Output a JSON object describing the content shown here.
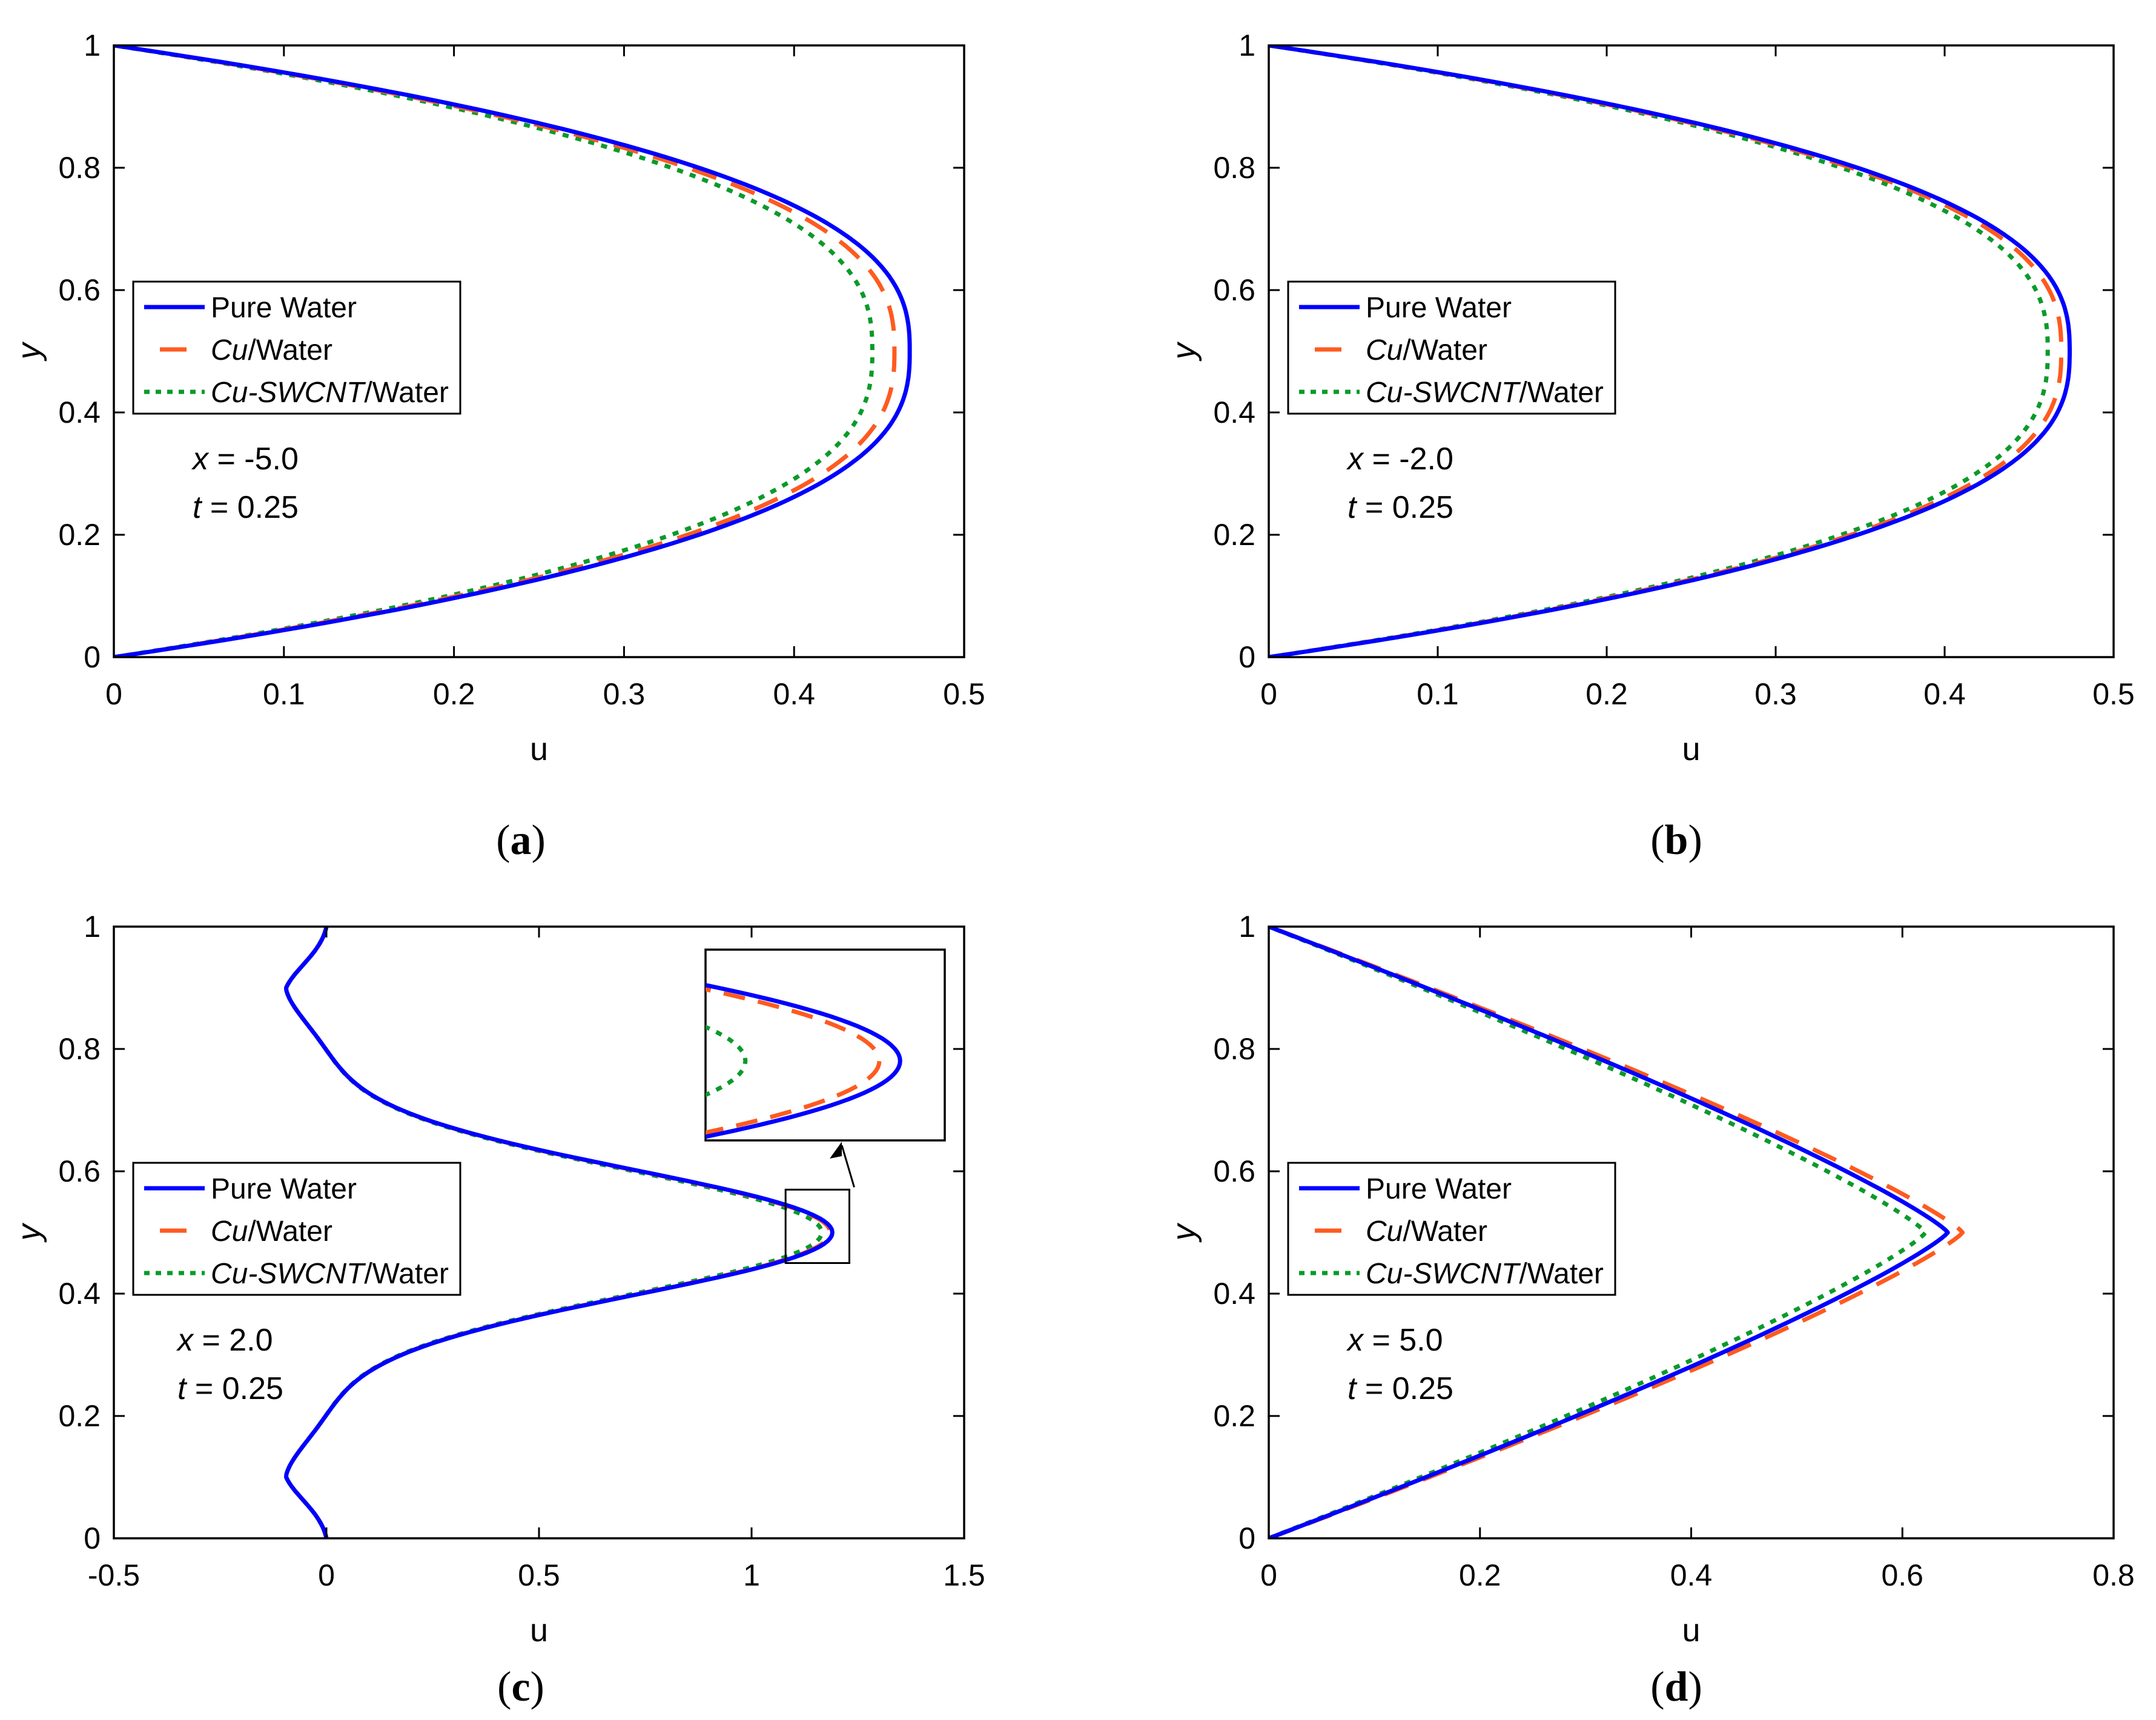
{
  "colors": {
    "pure_water": "#0000ff",
    "cu_water": "#ff5a1f",
    "cu_swcnt_water": "#0a9a2a",
    "axes": "#000000"
  },
  "legend_entries": [
    {
      "key": "pure_water",
      "prefix_italic": "",
      "text": "Pure Water"
    },
    {
      "key": "cu_water",
      "prefix_italic": "Cu",
      "text": "/Water"
    },
    {
      "key": "cu_swcnt_water",
      "prefix_italic": "Cu-SWCNT",
      "text": "/Water"
    }
  ],
  "chart_data": [
    {
      "type": "line",
      "caption": "a",
      "xlabel": "u",
      "ylabel": "y",
      "xlim": [
        0,
        0.5
      ],
      "ylim": [
        0,
        1
      ],
      "xticks": [
        "0",
        "0.1",
        "0.2",
        "0.3",
        "0.4",
        "0.5"
      ],
      "yticks": [
        "0",
        "0.2",
        "0.4",
        "0.6",
        "0.8",
        "1"
      ],
      "annotation": {
        "x_var": "x",
        "x_val": " = -5.0",
        "t_var": "t",
        "t_val": " = 0.25"
      },
      "legend": "left",
      "profile": "parabolic",
      "series": [
        {
          "key": "pure_water",
          "name": "Pure Water",
          "peak_u": 0.468
        },
        {
          "key": "cu_water",
          "name": "Cu/Water",
          "peak_u": 0.459
        },
        {
          "key": "cu_swcnt_water",
          "name": "Cu-SWCNT/Water",
          "peak_u": 0.446
        }
      ]
    },
    {
      "type": "line",
      "caption": "b",
      "xlabel": "u",
      "ylabel": "y",
      "xlim": [
        0,
        0.5
      ],
      "ylim": [
        0,
        1
      ],
      "xticks": [
        "0",
        "0.1",
        "0.2",
        "0.3",
        "0.4",
        "0.5"
      ],
      "yticks": [
        "0",
        "0.2",
        "0.4",
        "0.6",
        "0.8",
        "1"
      ],
      "annotation": {
        "x_var": "x",
        "x_val": " = -2.0",
        "t_var": "t",
        "t_val": " = 0.25"
      },
      "legend": "left",
      "profile": "parabolic",
      "series": [
        {
          "key": "pure_water",
          "name": "Pure Water",
          "peak_u": 0.474
        },
        {
          "key": "cu_water",
          "name": "Cu/Water",
          "peak_u": 0.469
        },
        {
          "key": "cu_swcnt_water",
          "name": "Cu-SWCNT/Water",
          "peak_u": 0.461
        }
      ]
    },
    {
      "type": "line",
      "caption": "c",
      "xlabel": "u",
      "ylabel": "y",
      "xlim": [
        -0.5,
        1.5
      ],
      "ylim": [
        0,
        1
      ],
      "xticks": [
        "-0.5",
        "0",
        "0.5",
        "1",
        "1.5"
      ],
      "yticks": [
        "0",
        "0.2",
        "0.4",
        "0.6",
        "0.8",
        "1"
      ],
      "annotation": {
        "x_var": "x",
        "x_val": " = 2.0",
        "t_var": "t",
        "t_val": " = 0.25"
      },
      "legend": "left",
      "profile": "reversing",
      "zoom_box": {
        "u": [
          1.08,
          1.23
        ],
        "y": [
          0.45,
          0.57
        ]
      },
      "series": [
        {
          "key": "pure_water",
          "name": "Pure Water",
          "peak_u": 1.19,
          "min_u": -0.085
        },
        {
          "key": "cu_water",
          "name": "Cu/Water",
          "peak_u": 1.185,
          "min_u": -0.085
        },
        {
          "key": "cu_swcnt_water",
          "name": "Cu-SWCNT/Water",
          "peak_u": 1.165,
          "min_u": -0.085
        }
      ]
    },
    {
      "type": "line",
      "caption": "d",
      "xlabel": "u",
      "ylabel": "y",
      "xlim": [
        0,
        0.8
      ],
      "ylim": [
        0,
        1
      ],
      "xticks": [
        "0",
        "0.2",
        "0.4",
        "0.6",
        "0.8"
      ],
      "yticks": [
        "0",
        "0.2",
        "0.4",
        "0.6",
        "0.8",
        "1"
      ],
      "annotation": {
        "x_var": "x",
        "x_val": " = 5.0",
        "t_var": "t",
        "t_val": " = 0.25"
      },
      "legend": "left",
      "profile": "triangular",
      "series": [
        {
          "key": "pure_water",
          "name": "Pure Water",
          "peak_u": 0.643
        },
        {
          "key": "cu_water",
          "name": "Cu/Water",
          "peak_u": 0.657
        },
        {
          "key": "cu_swcnt_water",
          "name": "Cu-SWCNT/Water",
          "peak_u": 0.622
        }
      ]
    }
  ]
}
